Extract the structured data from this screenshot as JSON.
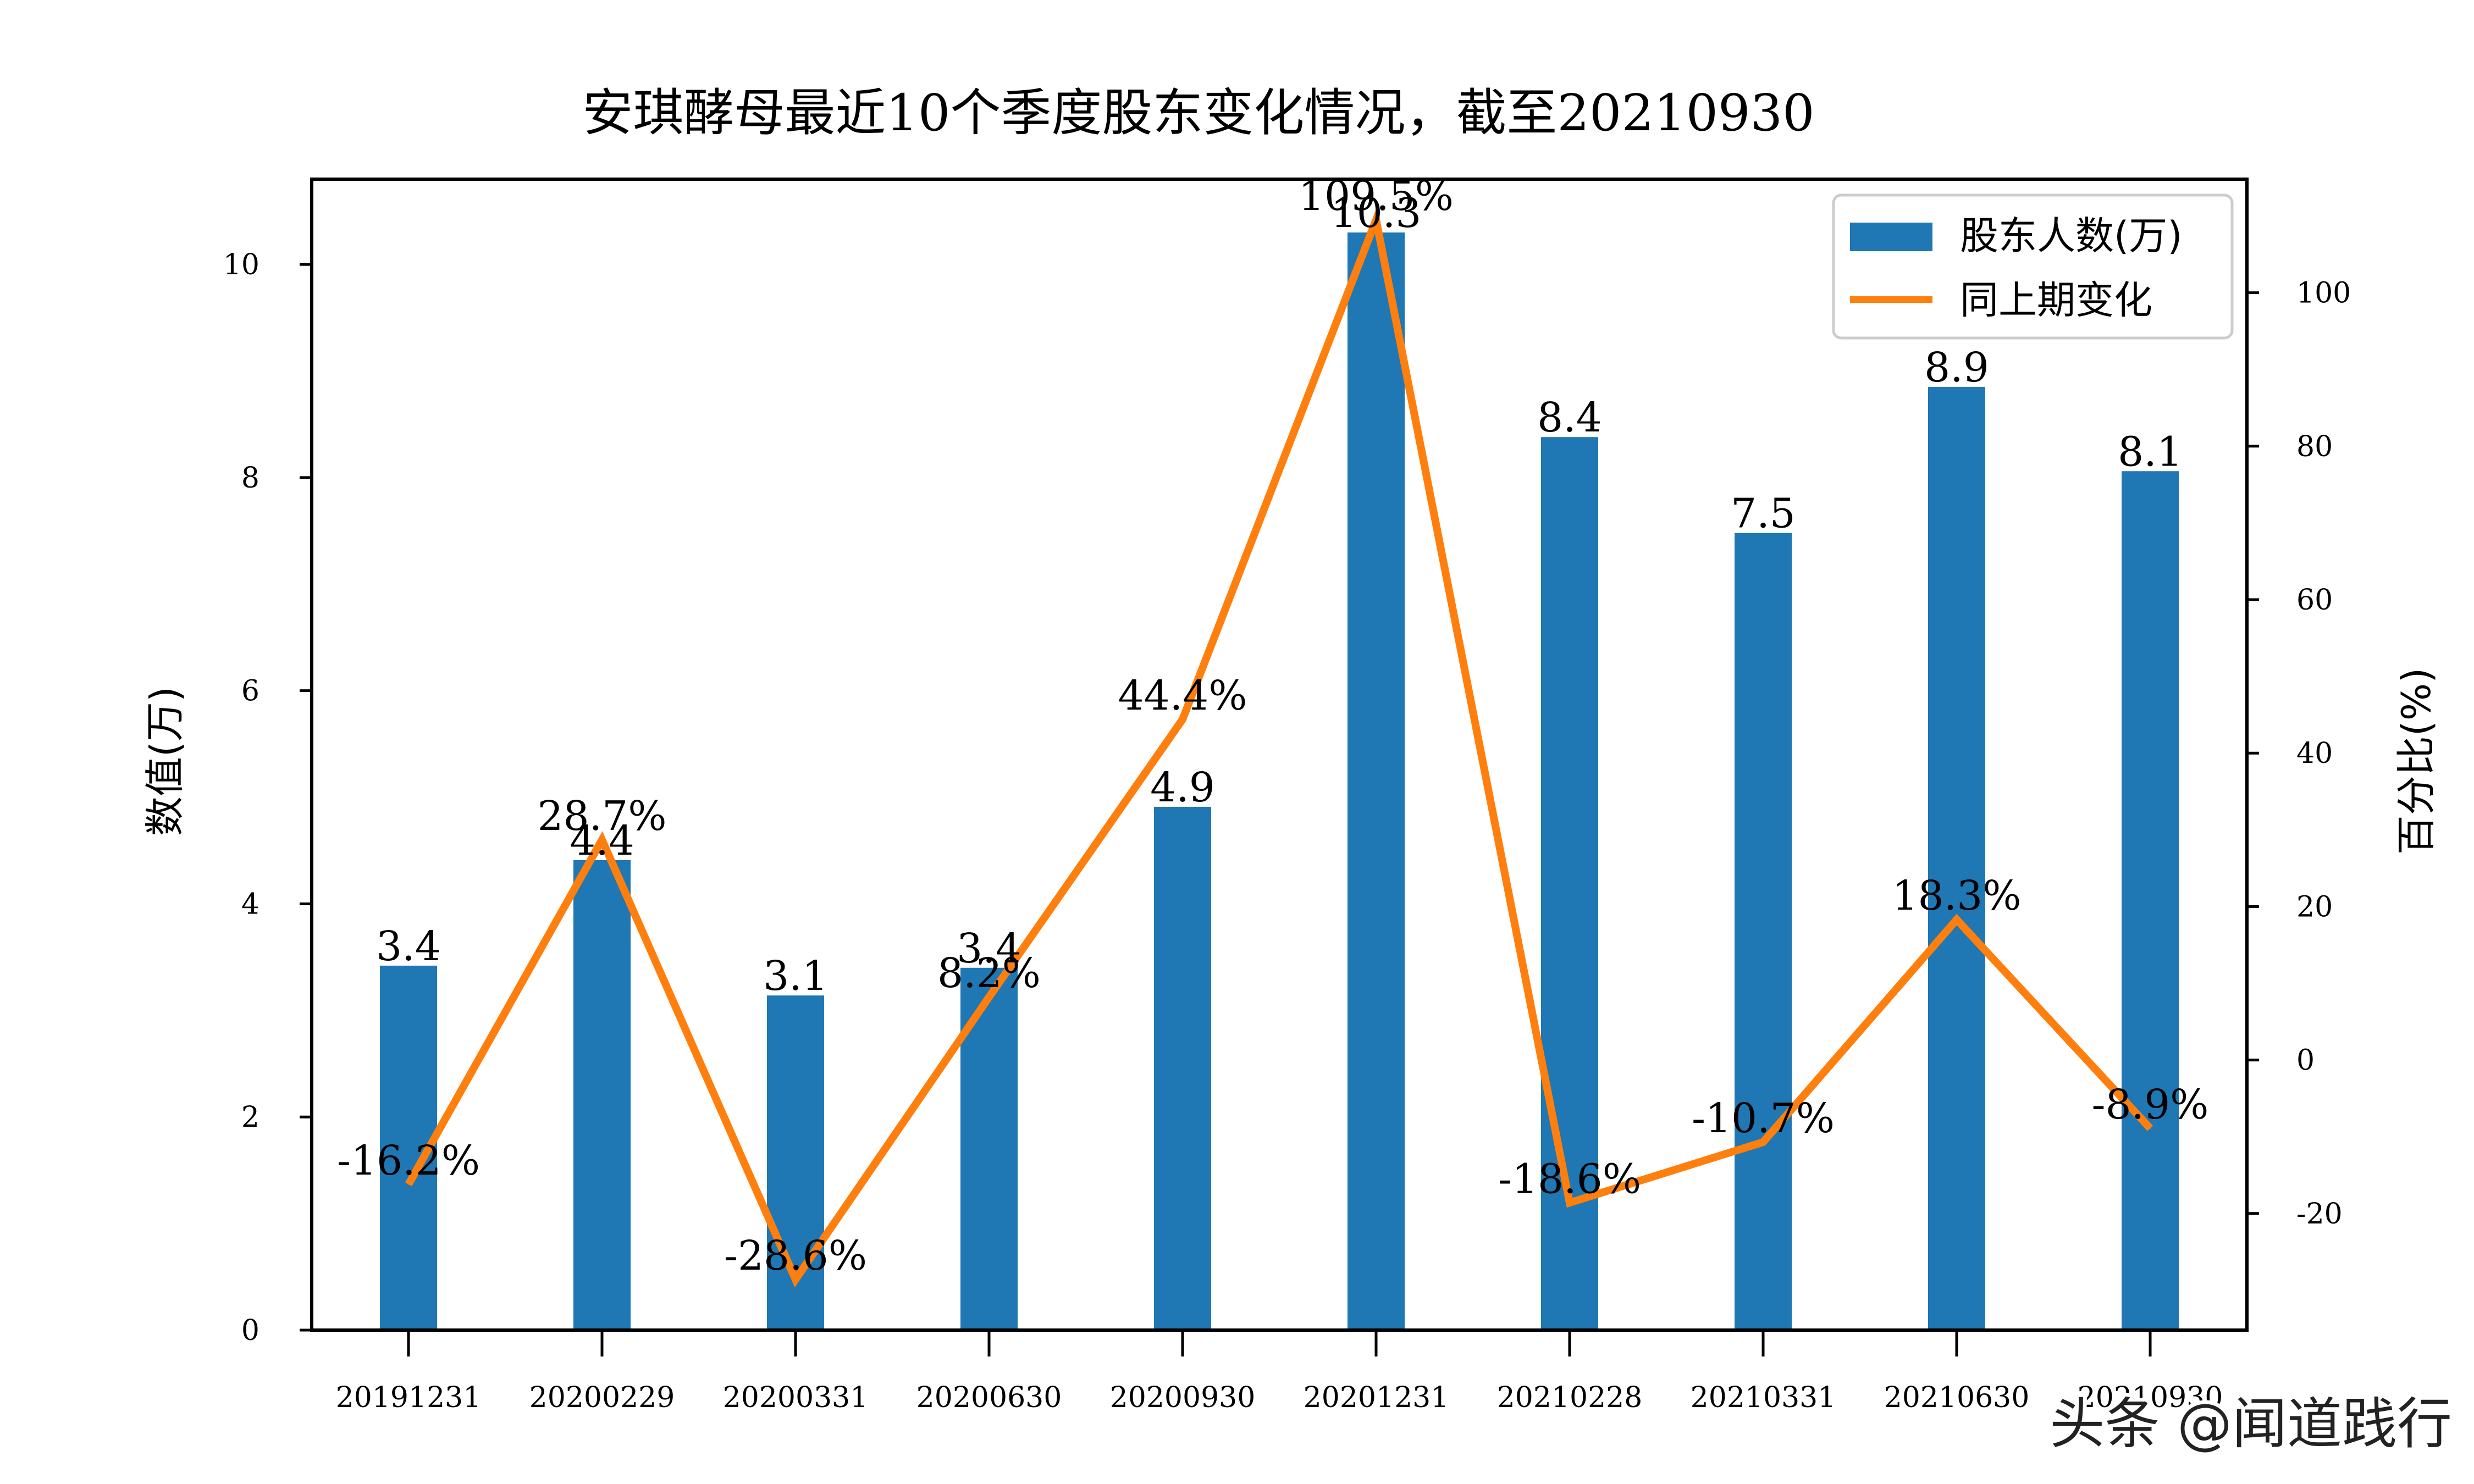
{
  "chart_data": {
    "type": "bar+line",
    "title": "安琪酵母最近10个季度股东变化情况，截至20210930",
    "categories": [
      "20191231",
      "20200229",
      "20200331",
      "20200630",
      "20200930",
      "20201231",
      "20210228",
      "20210331",
      "20210630",
      "20210930"
    ],
    "series": [
      {
        "name": "股东人数(万)",
        "type": "bar",
        "axis": "left",
        "color": "#1f77b4",
        "values": [
          3.42,
          4.41,
          3.14,
          3.4,
          4.91,
          10.3,
          8.38,
          7.48,
          8.85,
          8.06
        ],
        "labels": [
          "3.4",
          "4.4",
          "3.1",
          "3.4",
          "4.9",
          "10.3",
          "8.4",
          "7.5",
          "8.9",
          "8.1"
        ]
      },
      {
        "name": "同上期变化",
        "type": "line",
        "axis": "right",
        "color": "#ff7f0e",
        "values": [
          -16.2,
          28.7,
          -28.6,
          8.2,
          44.4,
          109.5,
          -18.6,
          -10.7,
          18.3,
          -8.9
        ],
        "labels": [
          "-16.2%",
          "28.7%",
          "-28.6%",
          "8.2%",
          "44.4%",
          "109.5%",
          "-18.6%",
          "-10.7%",
          "18.3%",
          "-8.9%"
        ]
      }
    ],
    "ylabel": "数值(万)",
    "ylabel_right": "百分比(%)",
    "ylim": [
      0,
      10.8
    ],
    "ylim_right": [
      -35.2,
      114.8
    ],
    "yticks": [
      0,
      2,
      4,
      6,
      8,
      10
    ],
    "yticks_right": [
      -20,
      0,
      20,
      40,
      60,
      80,
      100
    ],
    "legend": {
      "position": "top-right",
      "entries": [
        "股东人数(万)",
        "同上期变化"
      ]
    },
    "grid": false
  },
  "watermark": "头条 @闻道践行"
}
